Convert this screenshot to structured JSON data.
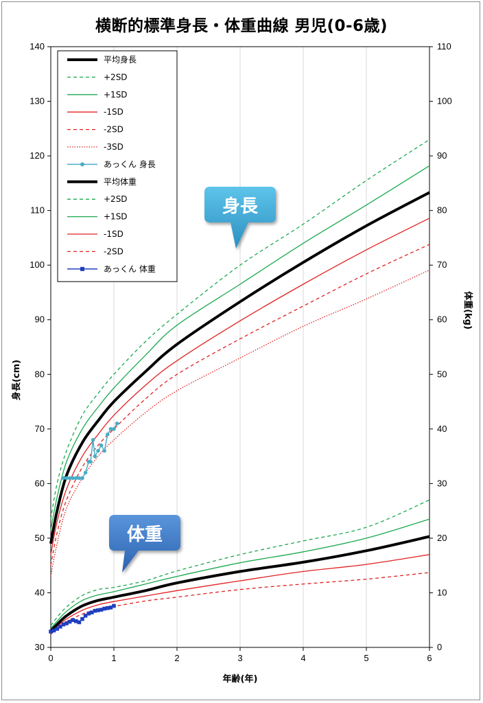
{
  "chart_data": {
    "type": "line",
    "title": "横断的標準身長・体重曲線 男児(0-6歳)",
    "xlabel": "年齢(年)",
    "ylabel_left": "身長(cm)",
    "ylabel_right": "体重(kg)",
    "xlim": [
      0,
      6
    ],
    "ylim_left": [
      30,
      140
    ],
    "ylim_right": [
      0,
      110
    ],
    "x_ticks": [
      "0",
      "1",
      "2",
      "3",
      "4",
      "5",
      "6"
    ],
    "y_ticks_left": [
      "30",
      "40",
      "50",
      "60",
      "70",
      "80",
      "90",
      "100",
      "110",
      "120",
      "130",
      "140"
    ],
    "y_ticks_right": [
      "0",
      "10",
      "20",
      "30",
      "40",
      "50",
      "60",
      "70",
      "80",
      "90",
      "100",
      "110"
    ],
    "grid": "vertical",
    "legend_position": "top-left",
    "height_series": [
      {
        "name": "平均身長",
        "color": "#000000",
        "style": "thick",
        "x": [
          0,
          0.1,
          0.25,
          0.5,
          0.75,
          1,
          1.5,
          2,
          3,
          4,
          5,
          6
        ],
        "y": [
          49,
          55,
          61.5,
          67.5,
          71.5,
          75,
          80.5,
          85.5,
          93.3,
          100.5,
          107.2,
          113.3
        ]
      },
      {
        "name": "+2SD",
        "color": "#1aa84e",
        "style": "dash",
        "x": [
          0,
          0.1,
          0.25,
          0.5,
          0.75,
          1,
          1.5,
          2,
          3,
          4,
          5,
          6
        ],
        "y": [
          53.5,
          60,
          66,
          72.5,
          76.5,
          80,
          86,
          91,
          100,
          107.5,
          115.5,
          123
        ]
      },
      {
        "name": "+1SD",
        "color": "#1aa84e",
        "style": "solid",
        "x": [
          0,
          0.1,
          0.25,
          0.5,
          0.75,
          1,
          1.5,
          2,
          3,
          4,
          5,
          6
        ],
        "y": [
          51.5,
          57.5,
          64,
          70,
          74,
          77.5,
          83.5,
          89,
          96.5,
          104,
          111,
          118.2
        ]
      },
      {
        "name": "-1SD",
        "color": "#e02020",
        "style": "solid",
        "x": [
          0,
          0.1,
          0.25,
          0.5,
          0.75,
          1,
          1.5,
          2,
          3,
          4,
          5,
          6
        ],
        "y": [
          47,
          53,
          59,
          65,
          69,
          72.5,
          78,
          82.5,
          89.8,
          96.5,
          102.8,
          108.6
        ]
      },
      {
        "name": "-2SD",
        "color": "#e02020",
        "style": "dash",
        "x": [
          0,
          0.1,
          0.25,
          0.5,
          0.75,
          1,
          1.5,
          2,
          3,
          4,
          5,
          6
        ],
        "y": [
          45,
          51,
          57,
          63,
          67,
          70,
          75.5,
          80,
          86.5,
          92.5,
          98.4,
          103.8
        ]
      },
      {
        "name": "-3SD",
        "color": "#e02020",
        "style": "dot",
        "x": [
          0,
          0.1,
          0.25,
          0.5,
          0.75,
          1,
          1.5,
          2,
          3,
          4,
          5,
          6
        ],
        "y": [
          43,
          49,
          55.5,
          61,
          65,
          68,
          73,
          77,
          83,
          88.8,
          93.8,
          99.1
        ]
      },
      {
        "name": "あっくん 身長",
        "color": "#4bacc6",
        "style": "marker-circle",
        "x": [
          0.2,
          0.25,
          0.3,
          0.35,
          0.4,
          0.45,
          0.5,
          0.55,
          0.6,
          0.63,
          0.67,
          0.7,
          0.75,
          0.8,
          0.85,
          0.9,
          0.95,
          1.0,
          1.05
        ],
        "y": [
          61,
          61,
          61,
          61,
          61,
          61,
          61,
          62,
          64,
          64,
          68,
          65,
          66,
          67,
          66,
          69,
          70,
          70,
          71
        ]
      }
    ],
    "weight_series": [
      {
        "name": "平均体重",
        "color": "#000000",
        "style": "thick",
        "x": [
          0,
          0.1,
          0.25,
          0.5,
          0.75,
          1,
          1.5,
          2,
          3,
          4,
          5,
          6
        ],
        "y": [
          3,
          4.2,
          5.8,
          7.6,
          8.6,
          9.2,
          10.4,
          11.8,
          13.9,
          15.6,
          17.7,
          20.3
        ]
      },
      {
        "name": "+2SD",
        "color": "#1aa84e",
        "style": "dash",
        "x": [
          0,
          0.1,
          0.25,
          0.5,
          0.75,
          1,
          1.5,
          2,
          3,
          4,
          5,
          6
        ],
        "y": [
          4,
          5.5,
          7.4,
          9.5,
          10.6,
          11,
          12.2,
          14,
          17,
          19.5,
          22,
          27
        ]
      },
      {
        "name": "+1SD",
        "color": "#1aa84e",
        "style": "solid",
        "x": [
          0,
          0.1,
          0.25,
          0.5,
          0.75,
          1,
          1.5,
          2,
          3,
          4,
          5,
          6
        ],
        "y": [
          3.5,
          4.8,
          6.6,
          8.6,
          9.6,
          10.2,
          11.6,
          13,
          15.5,
          17.5,
          20,
          23.5
        ]
      },
      {
        "name": "-1SD",
        "color": "#e02020",
        "style": "solid",
        "x": [
          0,
          0.1,
          0.25,
          0.5,
          0.75,
          1,
          1.5,
          2,
          3,
          4,
          5,
          6
        ],
        "y": [
          2.7,
          3.8,
          5.2,
          6.8,
          7.8,
          8.4,
          9.4,
          10.4,
          12.2,
          13.9,
          15.2,
          17
        ]
      },
      {
        "name": "-2SD",
        "color": "#e02020",
        "style": "dash",
        "x": [
          0,
          0.1,
          0.25,
          0.5,
          0.75,
          1,
          1.5,
          2,
          3,
          4,
          5,
          6
        ],
        "y": [
          2.4,
          3.4,
          4.7,
          6.1,
          7,
          7.5,
          8.5,
          9.2,
          10.6,
          11.6,
          12.5,
          13.7
        ]
      },
      {
        "name": "あっくん 体重",
        "color": "#1f3fbf",
        "style": "marker-square",
        "x": [
          0,
          0.05,
          0.1,
          0.15,
          0.2,
          0.25,
          0.3,
          0.35,
          0.4,
          0.45,
          0.5,
          0.55,
          0.6,
          0.65,
          0.7,
          0.75,
          0.8,
          0.85,
          0.9,
          0.95,
          1.0
        ],
        "y": [
          2.9,
          3.1,
          3.4,
          3.8,
          4.2,
          4.4,
          4.7,
          5,
          4.8,
          4.6,
          5.2,
          5.8,
          6.2,
          6.4,
          6.7,
          6.8,
          6.9,
          7.1,
          7.2,
          7.3,
          7.6
        ]
      }
    ]
  },
  "legend": [
    {
      "label": "平均身長",
      "color": "#000000",
      "style": "thick"
    },
    {
      "label": "+2SD",
      "color": "#1aa84e",
      "style": "dash"
    },
    {
      "label": "+1SD",
      "color": "#1aa84e",
      "style": "solid"
    },
    {
      "label": "-1SD",
      "color": "#e02020",
      "style": "solid"
    },
    {
      "label": "-2SD",
      "color": "#e02020",
      "style": "dash"
    },
    {
      "label": "-3SD",
      "color": "#e02020",
      "style": "dot"
    },
    {
      "label": "あっくん 身長",
      "color": "#4bacc6",
      "style": "marker-circle"
    },
    {
      "label": "平均体重",
      "color": "#000000",
      "style": "thick"
    },
    {
      "label": "+2SD",
      "color": "#1aa84e",
      "style": "dash"
    },
    {
      "label": "+1SD",
      "color": "#1aa84e",
      "style": "solid"
    },
    {
      "label": "-1SD",
      "color": "#e02020",
      "style": "solid"
    },
    {
      "label": "-2SD",
      "color": "#e02020",
      "style": "dash"
    },
    {
      "label": "あっくん 体重",
      "color": "#1f3fbf",
      "style": "marker-square"
    }
  ],
  "callouts": {
    "height": {
      "label": "身長",
      "color": "#3ea9d6"
    },
    "weight": {
      "label": "体重",
      "color": "#3a78c4"
    }
  }
}
